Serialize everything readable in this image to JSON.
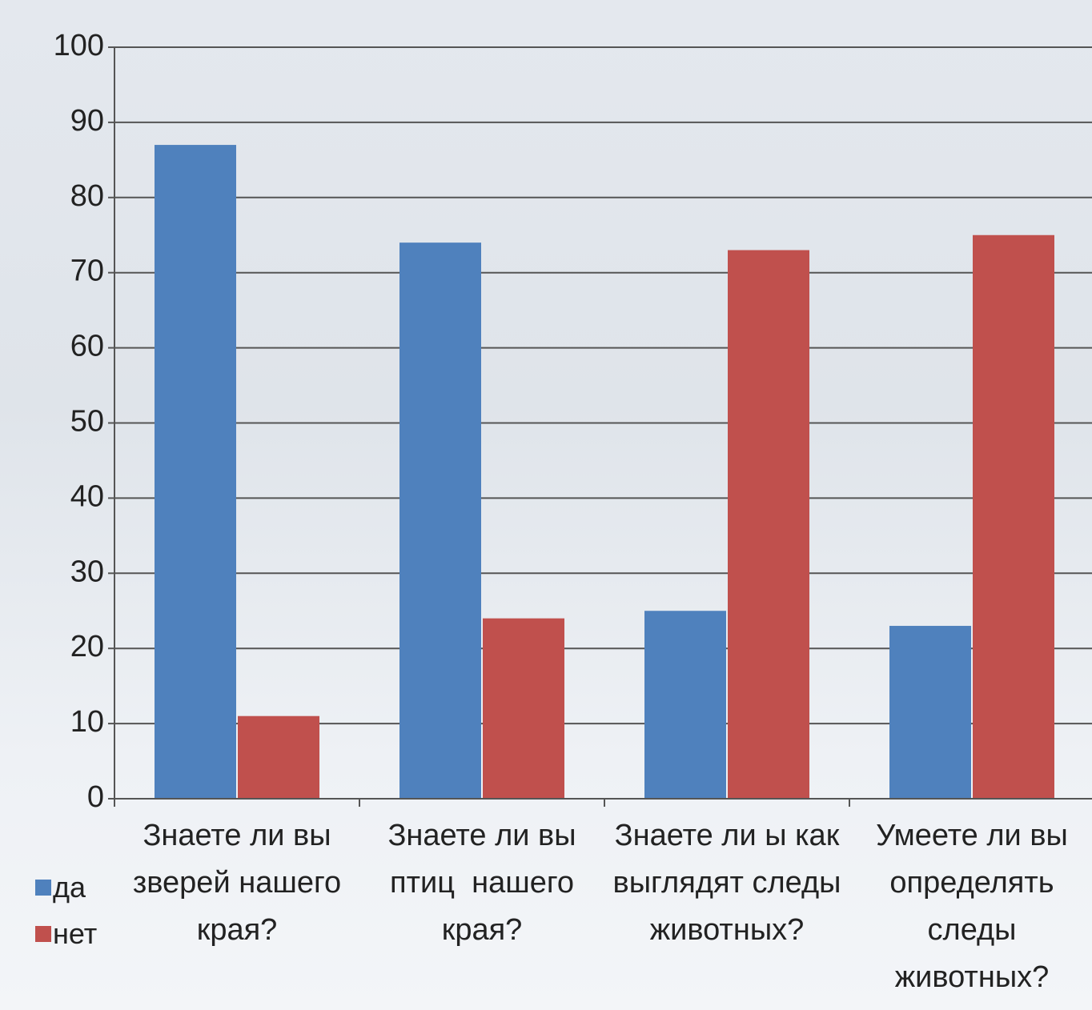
{
  "chart_data": {
    "type": "bar",
    "categories": [
      "Знаете ли вы зверей нашего края?",
      "Знаете ли вы птиц  нашего края?",
      "Знаете ли ы как выглядят следы животных?",
      "Умеете ли вы определять следы животных?"
    ],
    "series": [
      {
        "name": "да",
        "color": "#4f81bd",
        "values": [
          87,
          74,
          25,
          23
        ]
      },
      {
        "name": "нет",
        "color": "#c0504d",
        "values": [
          11,
          24,
          73,
          75
        ]
      }
    ],
    "ylim": [
      0,
      100
    ],
    "yticks": [
      0,
      10,
      20,
      30,
      40,
      50,
      60,
      70,
      80,
      90,
      100
    ],
    "grid": true,
    "legend": "left"
  }
}
